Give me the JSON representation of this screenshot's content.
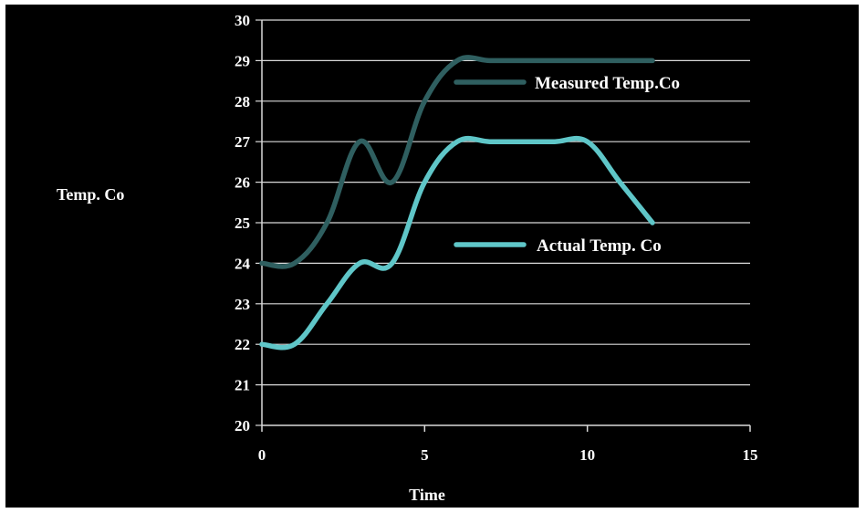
{
  "chart_data": {
    "type": "line",
    "title": "",
    "xlabel": "Time",
    "ylabel": "Temp. Co",
    "xlim": [
      0,
      15
    ],
    "ylim": [
      20,
      30
    ],
    "x_ticks": [
      0,
      5,
      10,
      15
    ],
    "y_ticks": [
      20,
      21,
      22,
      23,
      24,
      25,
      26,
      27,
      28,
      29,
      30
    ],
    "grid": "horizontal",
    "legend_position": "inside-right",
    "series": [
      {
        "name": "Measured Temp.Co",
        "color": "#2f5f60",
        "x": [
          0,
          1,
          2,
          3,
          4,
          5,
          6,
          7,
          8,
          9,
          10,
          11,
          12
        ],
        "values": [
          24,
          24,
          25,
          27,
          26,
          28,
          29,
          29,
          29,
          29,
          29,
          29,
          29
        ]
      },
      {
        "name": "Actual Temp. Co",
        "color": "#5fc6c8",
        "x": [
          0,
          1,
          2,
          3,
          4,
          5,
          6,
          7,
          8,
          9,
          10,
          11,
          12
        ],
        "values": [
          22,
          22,
          23,
          24,
          24,
          26,
          27,
          27,
          27,
          27,
          27,
          26,
          25
        ]
      }
    ]
  }
}
